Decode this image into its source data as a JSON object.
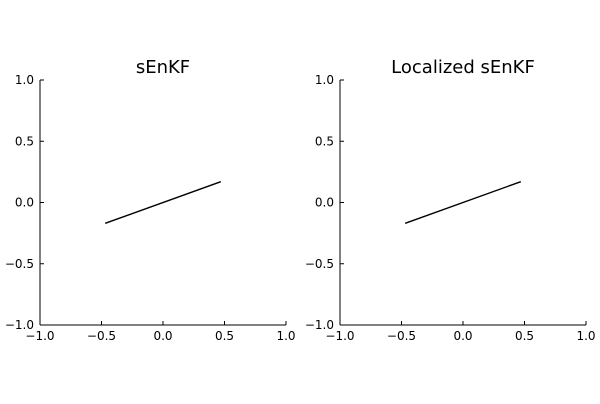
{
  "chart_data": [
    {
      "type": "line",
      "title": "sEnKF",
      "xlabel": "",
      "ylabel": "",
      "xlim": [
        -1.0,
        1.0
      ],
      "ylim": [
        -1.0,
        1.0
      ],
      "xticks": [
        -1.0,
        -0.5,
        0.0,
        0.5,
        1.0
      ],
      "yticks": [
        -1.0,
        -0.5,
        0.0,
        0.5,
        1.0
      ],
      "xtick_labels": [
        "−1.0",
        "−0.5",
        "0.0",
        "0.5",
        "1.0"
      ],
      "ytick_labels": [
        "−1.0",
        "−0.5",
        "0.0",
        "0.5",
        "1.0"
      ],
      "grid": false,
      "series": [
        {
          "x": [
            -0.47,
            0.47
          ],
          "y": [
            -0.17,
            0.17
          ],
          "color": "#000000"
        }
      ]
    },
    {
      "type": "line",
      "title": "Localized sEnKF",
      "xlabel": "",
      "ylabel": "",
      "xlim": [
        -1.0,
        1.0
      ],
      "ylim": [
        -1.0,
        1.0
      ],
      "xticks": [
        -1.0,
        -0.5,
        0.0,
        0.5,
        1.0
      ],
      "yticks": [
        -1.0,
        -0.5,
        0.0,
        0.5,
        1.0
      ],
      "xtick_labels": [
        "−1.0",
        "−0.5",
        "0.0",
        "0.5",
        "1.0"
      ],
      "ytick_labels": [
        "−1.0",
        "−0.5",
        "0.0",
        "0.5",
        "1.0"
      ],
      "grid": false,
      "series": [
        {
          "x": [
            -0.47,
            0.47
          ],
          "y": [
            -0.17,
            0.17
          ],
          "color": "#000000"
        }
      ]
    }
  ]
}
